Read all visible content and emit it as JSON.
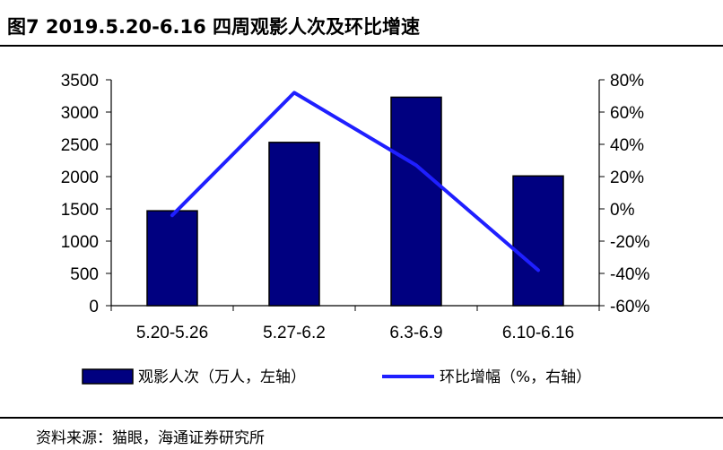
{
  "figure": {
    "title": "图7  2019.5.20-6.16 四周观影人次及环比增速",
    "source": "资料来源：猫眼，海通证券研究所"
  },
  "chart_data": {
    "type": "bar",
    "categories": [
      "5.20-5.26",
      "5.27-6.2",
      "6.3-6.9",
      "6.10-6.16"
    ],
    "series": [
      {
        "name": "观影人次（万人，左轴）",
        "type": "bar",
        "axis": "left",
        "color": "#000080",
        "values": [
          1470,
          2530,
          3230,
          2010
        ]
      },
      {
        "name": "环比增幅（%，右轴）",
        "type": "line",
        "axis": "right",
        "color": "#1F1FFF",
        "values": [
          -4,
          72,
          27,
          -38
        ]
      }
    ],
    "y_left": {
      "min": 0,
      "max": 3500,
      "ticks": [
        "0",
        "500",
        "1000",
        "1500",
        "2000",
        "2500",
        "3000",
        "3500"
      ]
    },
    "y_right": {
      "min": -60,
      "max": 80,
      "ticks": [
        "-60%",
        "-40%",
        "-20%",
        "0%",
        "20%",
        "40%",
        "60%",
        "80%"
      ]
    },
    "legend_position": "bottom",
    "grid": false
  }
}
